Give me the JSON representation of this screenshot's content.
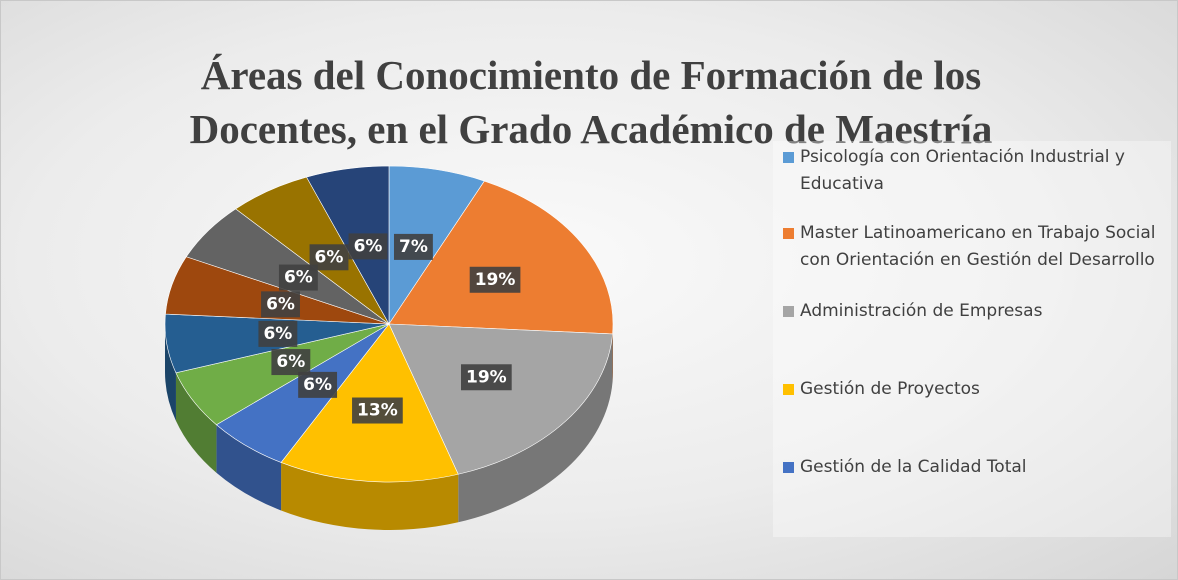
{
  "chart_data": {
    "type": "pie",
    "title": [
      "Áreas del Conocimiento de Formación de los",
      "Docentes, en el Grado Académico de Maestría"
    ],
    "categories": [
      " Psicología con Orientación Industrial y Educativa",
      "Master Latinoamericano en Trabajo Social con Orientación en Gestión del Desarrollo",
      "Administración de Empresas",
      "Gestión de Proyectos",
      "Gestión de la Calidad Total",
      null,
      null,
      null,
      null,
      null,
      null
    ],
    "values": [
      7,
      19,
      19,
      13,
      6,
      6,
      6,
      6,
      6,
      6,
      6
    ],
    "value_labels": [
      "7%",
      "19%",
      "19%",
      "13%",
      "6%",
      "6%",
      "6%",
      "6%",
      "6%",
      "6%",
      "6%"
    ],
    "colors": [
      "#5b9bd5",
      "#ed7d31",
      "#a5a5a5",
      "#ffc000",
      "#4472c4",
      "#70ad47",
      "#255e91",
      "#9e480e",
      "#636363",
      "#997300",
      "#264478"
    ],
    "legend": "right"
  }
}
